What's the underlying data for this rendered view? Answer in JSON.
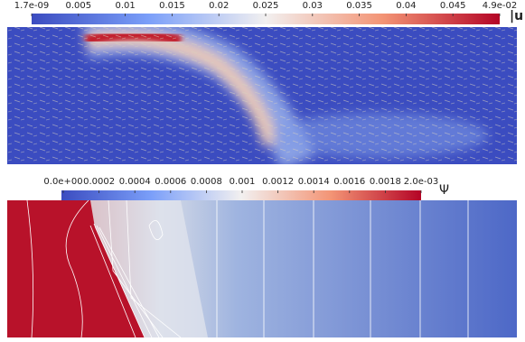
{
  "top_colorbar": {
    "ticks": [
      "1.7e-09",
      "0.005",
      "0.01",
      "0.015",
      "0.02",
      "0.025",
      "0.03",
      "0.035",
      "0.04",
      "0.045",
      "4.9e-02"
    ],
    "label": "|u"
  },
  "bottom_colorbar": {
    "ticks": [
      "0.0e+00",
      "0.0002",
      "0.0004",
      "0.0006",
      "0.0008",
      "0.001",
      "0.0012",
      "0.0014",
      "0.0016",
      "0.0018",
      "2.0e-03"
    ],
    "label": "Ψ"
  }
}
